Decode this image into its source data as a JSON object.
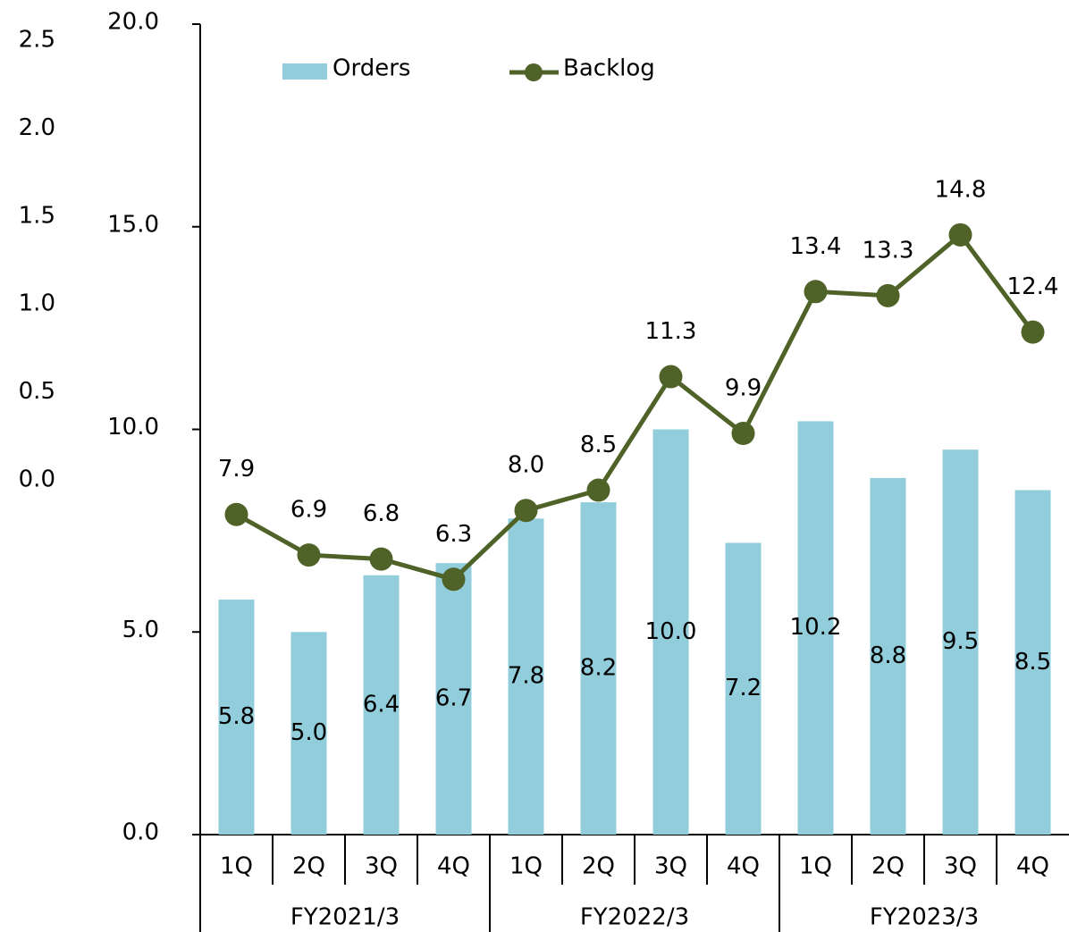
{
  "chart_data": {
    "type": "bar_line",
    "categories": [
      "1Q",
      "2Q",
      "3Q",
      "4Q",
      "1Q",
      "2Q",
      "3Q",
      "4Q",
      "1Q",
      "2Q",
      "3Q",
      "4Q"
    ],
    "groups": [
      "FY2021/3",
      "FY2022/3",
      "FY2023/3"
    ],
    "series": [
      {
        "name": "Orders",
        "type": "bar",
        "color": "#92cddc",
        "values": [
          5.8,
          5.0,
          6.4,
          6.7,
          7.8,
          8.2,
          10.0,
          7.2,
          10.2,
          8.8,
          9.5,
          8.5
        ],
        "value_labels": [
          "5.8",
          "5.0",
          "6.4",
          "6.7",
          "7.8",
          "8.2",
          "10.0",
          "7.2",
          "10.2",
          "8.8",
          "9.5",
          "8.5"
        ]
      },
      {
        "name": "Backlog",
        "type": "line",
        "color": "#4f6228",
        "values": [
          7.9,
          6.9,
          6.8,
          6.3,
          8.0,
          8.5,
          11.3,
          9.9,
          13.4,
          13.3,
          14.8,
          12.4
        ],
        "value_labels": [
          "7.9",
          "6.9",
          "6.8",
          "6.3",
          "8.0",
          "8.5",
          "11.3",
          "9.9",
          "13.4",
          "13.3",
          "14.8",
          "12.4"
        ]
      }
    ],
    "ylim": [
      0,
      20
    ],
    "yticks": [
      {
        "value": 0,
        "label": "0.0"
      },
      {
        "value": 5,
        "label": "5.0"
      },
      {
        "value": 10,
        "label": "10.0"
      },
      {
        "value": 15,
        "label": "15.0"
      },
      {
        "value": 20,
        "label": "20.0"
      }
    ],
    "y2lim": [
      0,
      2.5
    ],
    "y2ticks": [
      {
        "value": 0,
        "label": "0.0"
      },
      {
        "value": 0.5,
        "label": "0.5"
      },
      {
        "value": 1,
        "label": "1.0"
      },
      {
        "value": 1.5,
        "label": "1.5"
      },
      {
        "value": 2,
        "label": "2.0"
      },
      {
        "value": 2.5,
        "label": "2.5"
      }
    ],
    "legend": "top"
  }
}
